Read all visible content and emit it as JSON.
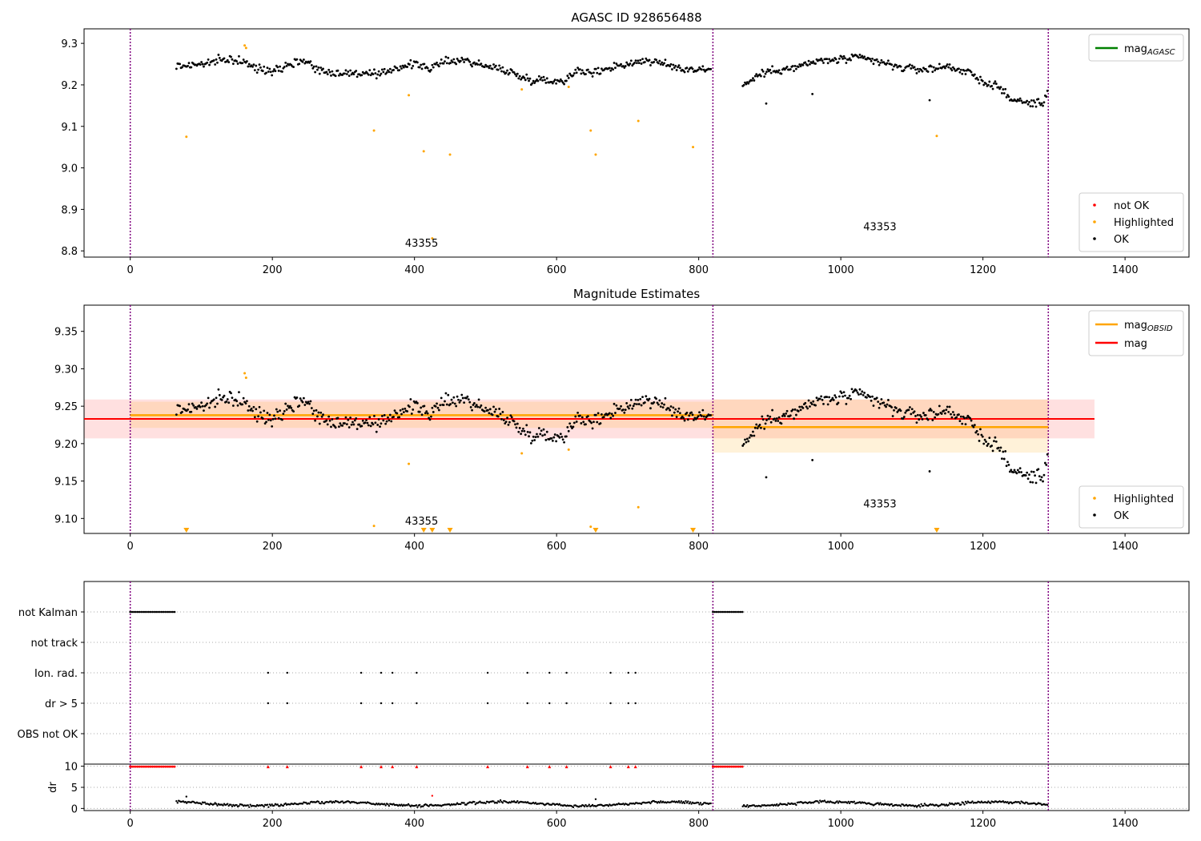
{
  "figure": {
    "title": "AGASC ID 928656488"
  },
  "colors": {
    "ok": "#000000",
    "highlighted": "#ffa500",
    "not_ok": "#ff0000",
    "mag_agasc": "#008000",
    "mag": "#ff0000",
    "mag_obsid": "#ffa500",
    "vline": "#800080"
  },
  "chart_data": [
    {
      "type": "scatter",
      "name": "top",
      "title": "",
      "xlim": [
        -65,
        1490
      ],
      "ylim": [
        8.785,
        9.335
      ],
      "xticks": [
        0,
        200,
        400,
        600,
        800,
        1000,
        1200,
        1400
      ],
      "yticks": [
        8.8,
        8.9,
        9.0,
        9.1,
        9.2,
        9.3
      ],
      "grid": false,
      "vlines": [
        0,
        820,
        1292
      ],
      "obsid_labels": [
        {
          "text": "43355",
          "x": 410,
          "y": 8.81
        },
        {
          "text": "43353",
          "x": 1055,
          "y": 8.85
        }
      ],
      "legend_lines": {
        "position": "top-right",
        "entries": [
          {
            "label": "mag",
            "sub": "AGASC",
            "color": "#008000"
          }
        ]
      },
      "legend_points": {
        "position": "bottom-right",
        "entries": [
          {
            "label": "not OK",
            "color": "#ff0000"
          },
          {
            "label": "Highlighted",
            "color": "#ffa500"
          },
          {
            "label": "OK",
            "color": "#000000"
          }
        ]
      },
      "ok_trend": [
        [
          65,
          9.245
        ],
        [
          100,
          9.25
        ],
        [
          140,
          9.262
        ],
        [
          160,
          9.255
        ],
        [
          175,
          9.24
        ],
        [
          200,
          9.235
        ],
        [
          220,
          9.248
        ],
        [
          245,
          9.26
        ],
        [
          270,
          9.232
        ],
        [
          300,
          9.228
        ],
        [
          330,
          9.228
        ],
        [
          350,
          9.222
        ],
        [
          370,
          9.24
        ],
        [
          400,
          9.25
        ],
        [
          425,
          9.24
        ],
        [
          445,
          9.258
        ],
        [
          470,
          9.26
        ],
        [
          500,
          9.245
        ],
        [
          530,
          9.235
        ],
        [
          555,
          9.215
        ],
        [
          580,
          9.212
        ],
        [
          610,
          9.208
        ],
        [
          625,
          9.235
        ],
        [
          650,
          9.228
        ],
        [
          680,
          9.245
        ],
        [
          700,
          9.25
        ],
        [
          725,
          9.26
        ],
        [
          750,
          9.25
        ],
        [
          780,
          9.238
        ],
        [
          818,
          9.238
        ],
        [
          865,
          9.2
        ],
        [
          885,
          9.225
        ],
        [
          910,
          9.237
        ],
        [
          935,
          9.24
        ],
        [
          960,
          9.255
        ],
        [
          990,
          9.26
        ],
        [
          1030,
          9.265
        ],
        [
          1060,
          9.252
        ],
        [
          1090,
          9.24
        ],
        [
          1120,
          9.237
        ],
        [
          1150,
          9.245
        ],
        [
          1180,
          9.23
        ],
        [
          1200,
          9.205
        ],
        [
          1220,
          9.2
        ],
        [
          1235,
          9.17
        ],
        [
          1255,
          9.158
        ],
        [
          1285,
          9.155
        ],
        [
          1292,
          9.192
        ]
      ],
      "ok_segments": [
        [
          65,
          818
        ],
        [
          862,
          1292
        ]
      ],
      "noise": 0.007,
      "highlighted_points": [
        [
          79,
          9.075
        ],
        [
          161,
          9.295
        ],
        [
          163,
          9.289
        ],
        [
          343,
          9.09
        ],
        [
          392,
          9.175
        ],
        [
          413,
          9.04
        ],
        [
          425,
          8.83
        ],
        [
          450,
          9.032
        ],
        [
          551,
          9.189
        ],
        [
          617,
          9.195
        ],
        [
          648,
          9.09
        ],
        [
          655,
          9.032
        ],
        [
          715,
          9.113
        ],
        [
          792,
          9.05
        ],
        [
          1135,
          9.077
        ]
      ],
      "isolated_ok_points": [
        [
          895,
          9.155
        ],
        [
          960,
          9.178
        ],
        [
          1125,
          9.163
        ]
      ]
    },
    {
      "type": "scatter",
      "name": "middle",
      "title": "Magnitude Estimates",
      "xlim": [
        -65,
        1490
      ],
      "ylim": [
        9.08,
        9.385
      ],
      "xticks": [
        0,
        200,
        400,
        600,
        800,
        1000,
        1200,
        1400
      ],
      "yticks": [
        9.1,
        9.15,
        9.2,
        9.25,
        9.3,
        9.35
      ],
      "grid": false,
      "vlines": [
        0,
        820,
        1292
      ],
      "obsid_labels": [
        {
          "text": "43355",
          "x": 410,
          "y": 9.092
        },
        {
          "text": "43353",
          "x": 1055,
          "y": 9.115
        }
      ],
      "mag": {
        "value": 9.233,
        "band": [
          9.207,
          9.259
        ],
        "xrange": [
          -65,
          1357
        ]
      },
      "mag_obsid": [
        {
          "x": [
            0,
            820
          ],
          "value": 9.238,
          "band": [
            9.221,
            9.256
          ]
        },
        {
          "x": [
            820,
            1292
          ],
          "value": 9.222,
          "band": [
            9.188,
            9.259
          ]
        }
      ],
      "legend_lines": {
        "position": "top-right",
        "entries": [
          {
            "label": "mag",
            "sub": "OBSID",
            "color": "#ffa500"
          },
          {
            "label": "mag",
            "sub": "",
            "color": "#ff0000"
          }
        ]
      },
      "legend_points": {
        "position": "bottom-right",
        "entries": [
          {
            "label": "Highlighted",
            "color": "#ffa500"
          },
          {
            "label": "OK",
            "color": "#000000"
          }
        ]
      },
      "highlighted_points": [
        [
          161,
          9.294
        ],
        [
          163,
          9.288
        ],
        [
          343,
          9.09
        ],
        [
          392,
          9.173
        ],
        [
          551,
          9.187
        ],
        [
          617,
          9.192
        ],
        [
          648,
          9.089
        ],
        [
          715,
          9.115
        ]
      ],
      "out_of_range_markers": [
        79,
        413,
        425,
        450,
        655,
        792,
        1135
      ]
    },
    {
      "type": "scatter",
      "name": "flags",
      "title": "",
      "xlim": [
        -65,
        1490
      ],
      "ytick_labels": [
        "not Kalman",
        "not track",
        "Ion. rad.",
        "dr > 5",
        "OBS not OK"
      ],
      "grid": true,
      "vlines": [
        0,
        820,
        1292
      ],
      "not_kalman_ranges": [
        [
          0,
          63
        ],
        [
          820,
          863
        ]
      ],
      "flag_x": [
        194,
        221,
        325,
        353,
        369,
        403,
        503,
        559,
        590,
        614,
        676,
        701,
        711
      ]
    },
    {
      "type": "scatter",
      "name": "dr",
      "title": "",
      "xlim": [
        -65,
        1490
      ],
      "ylim": [
        -0.5,
        10.5
      ],
      "ylabel": "dr",
      "yticks": [
        0,
        5,
        10
      ],
      "xticks": [
        0,
        200,
        400,
        600,
        800,
        1000,
        1200,
        1400
      ],
      "grid": true,
      "vlines": [
        0,
        820,
        1292
      ],
      "dr_segments": [
        [
          65,
          818
        ],
        [
          862,
          1292
        ]
      ],
      "dr_mean": 1.1,
      "clipped_ranges": [
        [
          0,
          63
        ],
        [
          820,
          863
        ]
      ],
      "clipped_x": [
        194,
        221,
        325,
        353,
        369,
        403,
        503,
        559,
        590,
        614,
        676,
        701,
        711
      ],
      "outlier_points": [
        [
          79,
          2.8
        ],
        [
          425,
          3.0
        ],
        [
          655,
          2.2
        ]
      ]
    }
  ]
}
